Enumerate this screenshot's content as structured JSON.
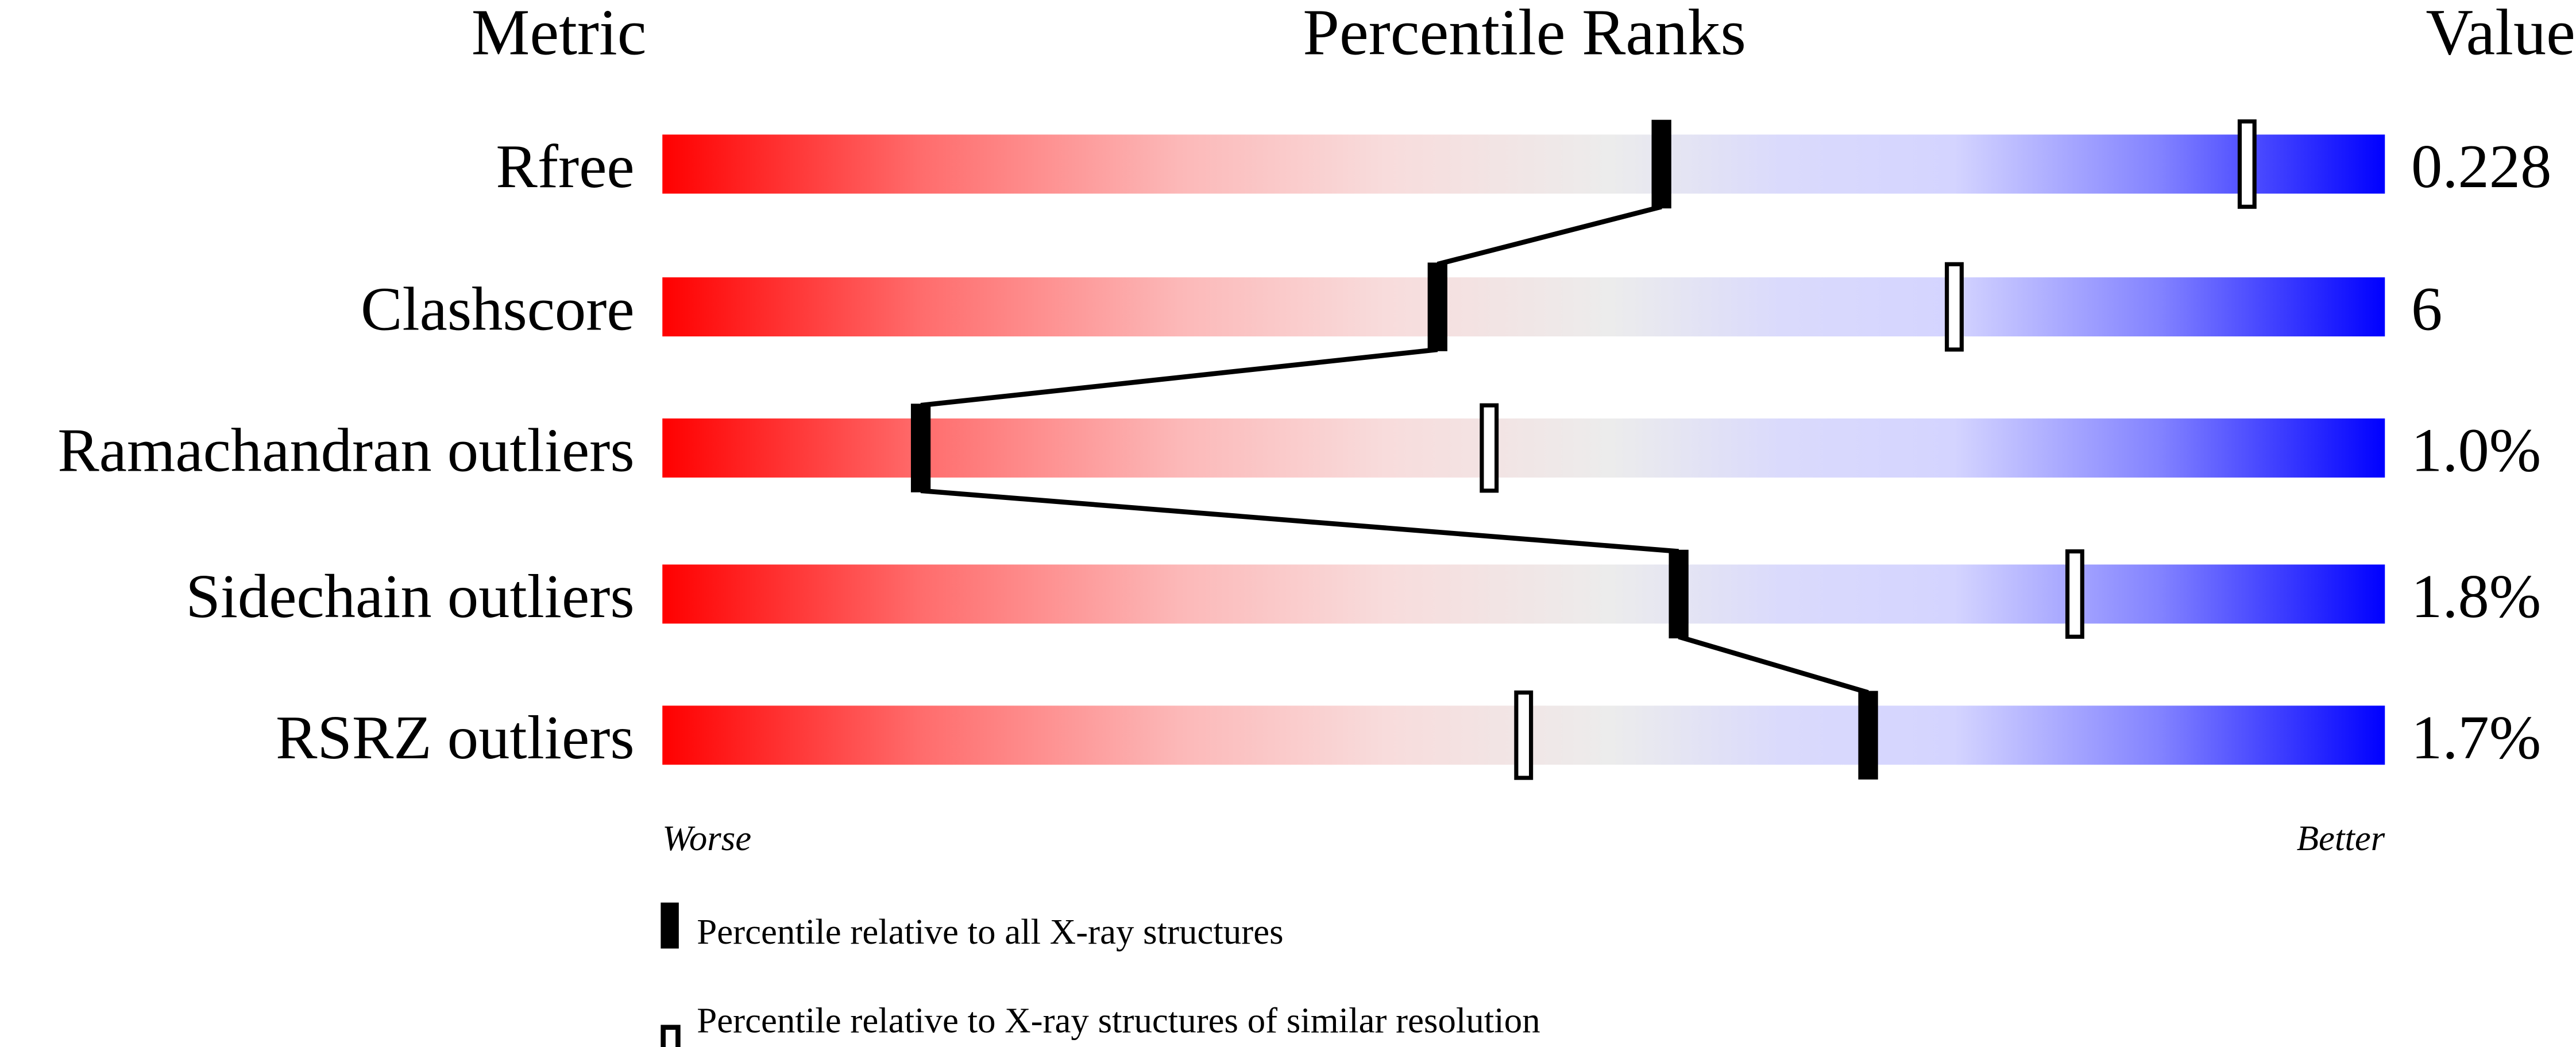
{
  "chart_data": {
    "type": "bar",
    "headers": {
      "metric": "Metric",
      "ranks": "Percentile Ranks",
      "value": "Value"
    },
    "xlim": [
      0,
      100
    ],
    "axis_ends": {
      "left": "Worse",
      "right": "Better"
    },
    "metrics": [
      {
        "name": "Rfree",
        "value": "0.228",
        "percentile_all": 58,
        "percentile_similar": 92
      },
      {
        "name": "Clashscore",
        "value": "6",
        "percentile_all": 45,
        "percentile_similar": 75
      },
      {
        "name": "Ramachandran outliers",
        "value": "1.0%",
        "percentile_all": 15,
        "percentile_similar": 48
      },
      {
        "name": "Sidechain outliers",
        "value": "1.8%",
        "percentile_all": 59,
        "percentile_similar": 82
      },
      {
        "name": "RSRZ outliers",
        "value": "1.7%",
        "percentile_all": 70,
        "percentile_similar": 50
      }
    ],
    "legend": {
      "all": "Percentile relative to all X-ray structures",
      "similar": "Percentile relative to X-ray structures of similar resolution"
    },
    "colors": {
      "worse": "#ff0000",
      "middle": "#eeeeee",
      "better": "#0000ff",
      "marker": "#000000"
    }
  }
}
